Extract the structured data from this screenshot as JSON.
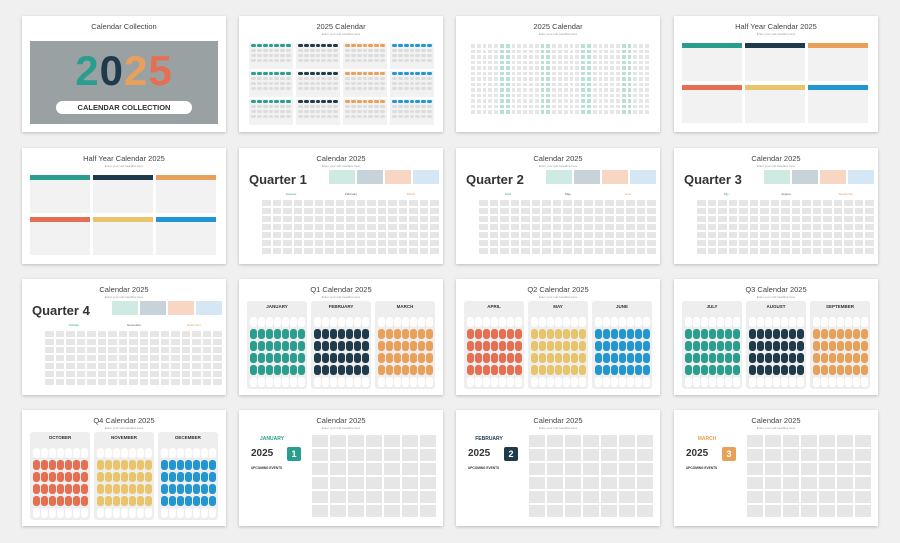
{
  "subtitle": "Enter your sub headline here",
  "cover": {
    "title": "Calendar Collection",
    "year_digits": [
      "2",
      "0",
      "2",
      "5"
    ],
    "digit_colors": [
      "#2a9d8f",
      "#1f3a4a",
      "#e9a05a",
      "#e76f51"
    ],
    "badge": "CALENDAR COLLECTION"
  },
  "slides": [
    {
      "title": "Calendar Collection"
    },
    {
      "title": "2025 Calendar"
    },
    {
      "title": "2025 Calendar"
    },
    {
      "title": "Half Year Calendar 2025"
    },
    {
      "title": "Half Year Calendar 2025"
    },
    {
      "title": "Calendar 2025",
      "quarter": "Quarter 1",
      "months": [
        "January",
        "February",
        "March"
      ]
    },
    {
      "title": "Calendar 2025",
      "quarter": "Quarter 2",
      "months": [
        "April",
        "May",
        "June"
      ]
    },
    {
      "title": "Calendar 2025",
      "quarter": "Quarter 3",
      "months": [
        "July",
        "August",
        "September"
      ]
    },
    {
      "title": "Calendar 2025",
      "quarter": "Quarter 4",
      "months": [
        "October",
        "November",
        "December"
      ]
    },
    {
      "title": "Q1 Calendar 2025",
      "months": [
        "JANUARY",
        "FEBRUARY",
        "MARCH"
      ]
    },
    {
      "title": "Q2 Calendar 2025",
      "months": [
        "APRIL",
        "MAY",
        "JUNE"
      ]
    },
    {
      "title": "Q3 Calendar 2025",
      "months": [
        "JULY",
        "AUGUST",
        "SEPTEMBER"
      ]
    },
    {
      "title": "Q4 Calendar 2025",
      "months": [
        "OCTOBER",
        "NOVEMBER",
        "DECEMBER"
      ]
    },
    {
      "title": "Calendar 2025",
      "month": "JANUARY",
      "year": "2025",
      "num": "1",
      "events_label": "UPCOMING EVENTS"
    },
    {
      "title": "Calendar 2025",
      "month": "FEBRUARY",
      "year": "2025",
      "num": "2",
      "events_label": "UPCOMING EVENTS"
    },
    {
      "title": "Calendar 2025",
      "month": "MARCH",
      "year": "2025",
      "num": "3",
      "events_label": "UPCOMING EVENTS"
    }
  ],
  "colors": {
    "teal": "#2a9d8f",
    "navy": "#1f3a4a",
    "orange": "#e9a05a",
    "red": "#e76f51",
    "yellow": "#e9c46a",
    "blue": "#2196d3"
  }
}
